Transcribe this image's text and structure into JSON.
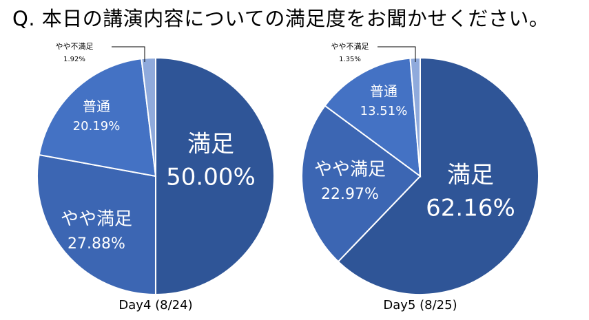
{
  "title": "Q. 本日の講演内容についての満足度をお聞かせください。",
  "colors": {
    "satisfied": "#2f5597",
    "somewhat_satisfied": "#3c66b3",
    "neutral": "#4472c4",
    "somewhat_dissatisfied": "#8faadc",
    "border": "#ffffff"
  },
  "chart_data": [
    {
      "type": "pie",
      "title": "Day4 (8/24)",
      "categories": [
        "満足",
        "やや満足",
        "普通",
        "やや不満足"
      ],
      "values": [
        50.0,
        27.88,
        20.19,
        1.92
      ],
      "labels": [
        "50.00%",
        "27.88%",
        "20.19%",
        "1.92%"
      ]
    },
    {
      "type": "pie",
      "title": "Day5 (8/25)",
      "categories": [
        "満足",
        "やや満足",
        "普通",
        "やや不満足"
      ],
      "values": [
        62.16,
        22.97,
        13.51,
        1.35
      ],
      "labels": [
        "62.16%",
        "22.97%",
        "13.51%",
        "1.35%"
      ]
    }
  ]
}
